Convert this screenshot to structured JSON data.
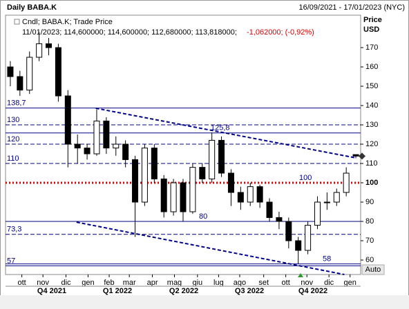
{
  "chart_data": {
    "type": "candlestick",
    "title": "Daily BABA.K",
    "date_range": "16/09/2021 - 17/01/2023 (NYC)",
    "legend": "Cndl; BABA.K; Trade Price",
    "info_values": "11/01/2023; 114,600000; 114,600000; 112,680000; 113,818000;",
    "info_change": "-1,062000; (-0,92%)",
    "y_axis_label": "Price",
    "y_axis_unit": "USD",
    "scale_mode": "Auto",
    "open": [
      160,
      155,
      148,
      165,
      172,
      170,
      145,
      120,
      118,
      115,
      132,
      118,
      120,
      112,
      90,
      118,
      102,
      85,
      100,
      85,
      108,
      102,
      122,
      105,
      95,
      90,
      98,
      90,
      82,
      80,
      70,
      65,
      78,
      90,
      90,
      95,
      114.6
    ],
    "high": [
      163,
      158,
      168,
      178,
      175,
      172,
      148,
      125,
      120,
      138,
      134,
      124,
      122,
      114,
      120,
      120,
      104,
      102,
      102,
      110,
      110,
      126,
      124,
      107,
      98,
      100,
      99,
      92,
      85,
      82,
      72,
      80,
      93,
      95,
      97,
      108,
      114.6
    ],
    "low": [
      150,
      145,
      146,
      163,
      166,
      142,
      108,
      110,
      112,
      114,
      115,
      114,
      108,
      72,
      88,
      100,
      82,
      83,
      80,
      84,
      100,
      100,
      103,
      88,
      86,
      88,
      87,
      80,
      76,
      66,
      58,
      63,
      76,
      86,
      88,
      93,
      112.68
    ],
    "close": [
      155,
      148,
      165,
      172,
      170,
      145,
      120,
      118,
      115,
      132,
      118,
      120,
      112,
      90,
      118,
      102,
      85,
      100,
      85,
      108,
      102,
      122,
      105,
      95,
      90,
      98,
      90,
      82,
      80,
      70,
      65,
      78,
      90,
      90,
      95,
      105,
      113.818
    ],
    "xlim": [
      -0.5,
      36.5
    ],
    "xticks": [
      {
        "value": 1.2,
        "label": "ott"
      },
      {
        "value": 3.4,
        "label": "nov"
      },
      {
        "value": 5.8,
        "label": "dic"
      },
      {
        "value": 8.1,
        "label": "gen"
      },
      {
        "value": 10.3,
        "label": "feb"
      },
      {
        "value": 12.4,
        "label": "mar"
      },
      {
        "value": 14.8,
        "label": "apr"
      },
      {
        "value": 17.1,
        "label": "mag"
      },
      {
        "value": 19.5,
        "label": "giu"
      },
      {
        "value": 21.7,
        "label": "lug"
      },
      {
        "value": 23.9,
        "label": "ago"
      },
      {
        "value": 26.4,
        "label": "set"
      },
      {
        "value": 28.7,
        "label": "ott"
      },
      {
        "value": 30.9,
        "label": "nov"
      },
      {
        "value": 33.2,
        "label": "dic"
      },
      {
        "value": 35.4,
        "label": "gen"
      }
    ],
    "quarters": [
      "Q4 2021",
      "Q1 2022",
      "Q2 2022",
      "Q3 2022",
      "Q4 2022"
    ],
    "ylim": [
      52.5,
      186.8
    ],
    "yticks": [
      60,
      70,
      80,
      90,
      100,
      110,
      120,
      130,
      140,
      150,
      160,
      170
    ],
    "levels": [
      {
        "value": 138.7,
        "label": "138,7",
        "style": "solid",
        "color": "#000080"
      },
      {
        "value": 130,
        "label": "130",
        "style": "dashed",
        "color": "#000080"
      },
      {
        "value": 125.8,
        "label": "125,8",
        "style": "solid",
        "color": "#000080"
      },
      {
        "value": 120,
        "label": "120",
        "style": "dashed",
        "color": "#000080"
      },
      {
        "value": 110,
        "label": "110",
        "style": "dashed",
        "color": "#000080"
      },
      {
        "value": 100,
        "label": "100",
        "style": "dotted",
        "color": "#e00000"
      },
      {
        "value": 80,
        "label": "80",
        "style": "solid",
        "color": "#000080"
      },
      {
        "value": 73.3,
        "label": "73,3",
        "style": "dashed",
        "color": "#000080"
      },
      {
        "value": 58,
        "label": "58",
        "style": "solid",
        "color": "#000080"
      },
      {
        "value": 57,
        "label": "57",
        "style": "solid",
        "color": "#000080"
      }
    ],
    "trendlines": [
      {
        "x": [
          8.9,
          36
        ],
        "y": [
          138.6,
          112.9
        ],
        "color": "#00008b"
      },
      {
        "x": [
          6.9,
          34.8
        ],
        "y": [
          79.6,
          52.5
        ],
        "color": "#00008b"
      }
    ]
  }
}
